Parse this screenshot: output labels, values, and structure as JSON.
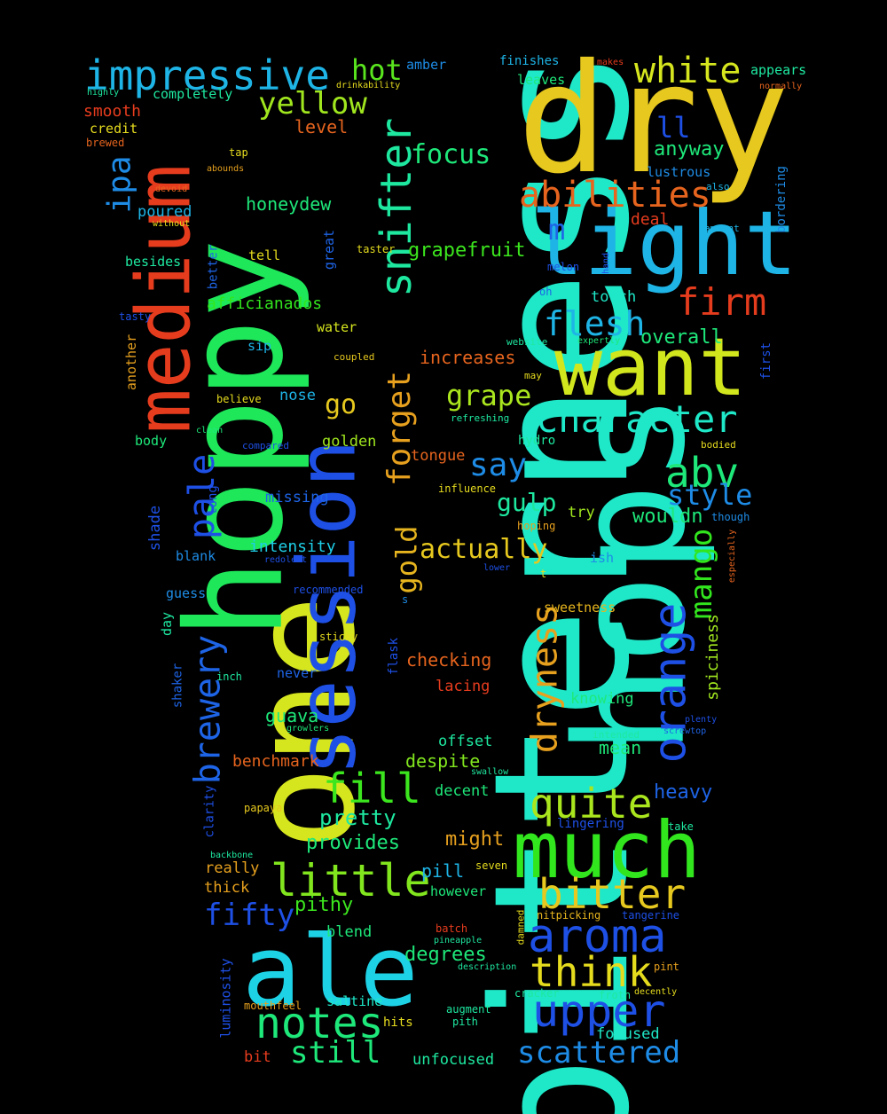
{
  "words": [
    {
      "text": "bitterness",
      "color": "#1ee8c8"
    },
    {
      "text": "hops",
      "color": "#1ee8c8"
    },
    {
      "text": "one",
      "color": "#d6e61e"
    },
    {
      "text": "hoppy",
      "color": "#1ee85a"
    },
    {
      "text": "dry",
      "color": "#e6c81e"
    },
    {
      "text": "session",
      "color": "#1e50e6"
    },
    {
      "text": "ale",
      "color": "#1ed2e6"
    },
    {
      "text": "medium",
      "color": "#e63c1e"
    },
    {
      "text": "light",
      "color": "#1eb4e6"
    },
    {
      "text": "want",
      "color": "#d2e61e"
    },
    {
      "text": "much",
      "color": "#32e61e"
    },
    {
      "text": "impressive",
      "color": "#1eb4e6"
    },
    {
      "text": "orange",
      "color": "#1e50e6"
    },
    {
      "text": "snifter",
      "color": "#1ee8a0"
    },
    {
      "text": "aroma",
      "color": "#1e50e6"
    },
    {
      "text": "upper",
      "color": "#1e50e6"
    },
    {
      "text": "notes",
      "color": "#1ee87a"
    },
    {
      "text": "little",
      "color": "#82e61e"
    },
    {
      "text": "bitter",
      "color": "#e6c81e"
    },
    {
      "text": "think",
      "color": "#e6dc1e"
    },
    {
      "text": "quite",
      "color": "#aae61e"
    },
    {
      "text": "character",
      "color": "#1ee8c8"
    },
    {
      "text": "abilities",
      "color": "#e6641e"
    },
    {
      "text": "dryness",
      "color": "#e6a01e"
    },
    {
      "text": "fill",
      "color": "#3ce61e"
    },
    {
      "text": "brewery",
      "color": "#1e64e6"
    },
    {
      "text": "abv",
      "color": "#1ee87a"
    },
    {
      "text": "white",
      "color": "#d6e61e"
    },
    {
      "text": "scattered",
      "color": "#1e8ce6"
    },
    {
      "text": "forget",
      "color": "#e6a01e"
    },
    {
      "text": "pale",
      "color": "#1e50e6"
    },
    {
      "text": "fifty",
      "color": "#1e50e6"
    },
    {
      "text": "flesh",
      "color": "#1eb4e6"
    },
    {
      "text": "firm",
      "color": "#e63c1e"
    },
    {
      "text": "yellow",
      "color": "#a0e61e"
    },
    {
      "text": "still",
      "color": "#1ee87a"
    },
    {
      "text": "mango",
      "color": "#32e61e"
    },
    {
      "text": "say",
      "color": "#1e8ce6"
    },
    {
      "text": "grape",
      "color": "#aae61e"
    },
    {
      "text": "style",
      "color": "#1e8ce6"
    },
    {
      "text": "hot",
      "color": "#5ae61e"
    },
    {
      "text": "ipa",
      "color": "#1e8ce6"
    },
    {
      "text": "gold",
      "color": "#e6b41e"
    },
    {
      "text": "focus",
      "color": "#1ee87a"
    },
    {
      "text": "actually",
      "color": "#e6c81e"
    },
    {
      "text": "gulp",
      "color": "#1ee8a0"
    },
    {
      "text": "ll",
      "color": "#1e50e6"
    },
    {
      "text": "m",
      "color": "#1e64e6"
    },
    {
      "text": "go",
      "color": "#e6c81e"
    },
    {
      "text": "pretty",
      "color": "#1ee8a0"
    },
    {
      "text": "grapefruit",
      "color": "#3ce61e"
    },
    {
      "text": "overall",
      "color": "#1ee87a"
    },
    {
      "text": "anyway",
      "color": "#1ee87a"
    },
    {
      "text": "honeydew",
      "color": "#1ee87a"
    },
    {
      "text": "provides",
      "color": "#1ee87a"
    },
    {
      "text": "heavy",
      "color": "#1e64e6"
    },
    {
      "text": "wouldn",
      "color": "#1ee87a"
    },
    {
      "text": "pithy",
      "color": "#3ce61e"
    },
    {
      "text": "degrees",
      "color": "#1ee87a"
    },
    {
      "text": "despite",
      "color": "#82e61e"
    },
    {
      "text": "benchmark",
      "color": "#e6641e"
    },
    {
      "text": "intensity",
      "color": "#1ecee6"
    },
    {
      "text": "guava",
      "color": "#1ee87a"
    },
    {
      "text": "might",
      "color": "#e6a01e"
    },
    {
      "text": "mean",
      "color": "#1ee87a"
    },
    {
      "text": "increases",
      "color": "#e6641e"
    },
    {
      "text": "checking",
      "color": "#e6641e"
    },
    {
      "text": "poured",
      "color": "#1eb4e6"
    },
    {
      "text": "smooth",
      "color": "#e63c1e"
    },
    {
      "text": "level",
      "color": "#e6641e"
    },
    {
      "text": "deal",
      "color": "#e63c1e"
    },
    {
      "text": "spiciness",
      "color": "#a0e61e"
    },
    {
      "text": "touch",
      "color": "#1ee8c8"
    },
    {
      "text": "afficianados",
      "color": "#32e61e"
    },
    {
      "text": "golden",
      "color": "#a0e61e"
    },
    {
      "text": "tongue",
      "color": "#e6641e"
    },
    {
      "text": "missing",
      "color": "#1e64e6"
    },
    {
      "text": "lacing",
      "color": "#e63c1e"
    },
    {
      "text": "offset",
      "color": "#1ee8a0"
    },
    {
      "text": "knowing",
      "color": "#1ee87a"
    },
    {
      "text": "pill",
      "color": "#1eb4e6"
    },
    {
      "text": "sweetness",
      "color": "#e6b41e"
    },
    {
      "text": "unfocused",
      "color": "#1ee8a0"
    },
    {
      "text": "focused",
      "color": "#1ee8c8"
    },
    {
      "text": "saltine",
      "color": "#1ee8c8"
    },
    {
      "text": "however",
      "color": "#1ee87a"
    },
    {
      "text": "decent",
      "color": "#1ee87a"
    },
    {
      "text": "blend",
      "color": "#1ee87a"
    },
    {
      "text": "really",
      "color": "#e6a01e"
    },
    {
      "text": "thick",
      "color": "#e6a01e"
    },
    {
      "text": "try",
      "color": "#a0e61e"
    },
    {
      "text": "water",
      "color": "#d6e61e"
    },
    {
      "text": "nose",
      "color": "#1eb4e6"
    },
    {
      "text": "tell",
      "color": "#e6dc1e"
    },
    {
      "text": "body",
      "color": "#1ee87a"
    },
    {
      "text": "besides",
      "color": "#1ee8a0"
    },
    {
      "text": "completely",
      "color": "#1ee8a0"
    },
    {
      "text": "credit",
      "color": "#e6dc1e"
    },
    {
      "text": "leaves",
      "color": "#1ee87a"
    },
    {
      "text": "lustrous",
      "color": "#1e8ce6"
    },
    {
      "text": "appears",
      "color": "#1ee8a0"
    },
    {
      "text": "amber",
      "color": "#1e8ce6"
    },
    {
      "text": "finishes",
      "color": "#1eb4e6"
    },
    {
      "text": "blank",
      "color": "#1e8ce6"
    },
    {
      "text": "guess",
      "color": "#1e8ce6"
    },
    {
      "text": "ish",
      "color": "#1e8ce6"
    },
    {
      "text": "sip",
      "color": "#1eb4e6"
    },
    {
      "text": "never",
      "color": "#1e64e6"
    },
    {
      "text": "bit",
      "color": "#e63c1e"
    },
    {
      "text": "hits",
      "color": "#e6dc1e"
    },
    {
      "text": "hydro",
      "color": "#1ee8a0"
    },
    {
      "text": "tap",
      "color": "#e6dc1e"
    },
    {
      "text": "believe",
      "color": "#e6dc1e"
    },
    {
      "text": "sticky",
      "color": "#e6dc1e"
    },
    {
      "text": "inch",
      "color": "#1ee8a0"
    },
    {
      "text": "pint",
      "color": "#e6a01e"
    },
    {
      "text": "cracker",
      "color": "#1ee8a0"
    },
    {
      "text": "augment",
      "color": "#1ee8a0"
    },
    {
      "text": "pith",
      "color": "#1ee8a0"
    },
    {
      "text": "froth",
      "color": "#1ee8a0"
    },
    {
      "text": "batch",
      "color": "#e63c1e"
    },
    {
      "text": "take",
      "color": "#1ee8a0"
    },
    {
      "text": "seven",
      "color": "#e6dc1e"
    },
    {
      "text": "lingering",
      "color": "#1e50e6"
    },
    {
      "text": "nitpicking",
      "color": "#e6b41e"
    },
    {
      "text": "tangerine",
      "color": "#1e50e6"
    },
    {
      "text": "mouthfeel",
      "color": "#e6a01e"
    },
    {
      "text": "papaya",
      "color": "#e6c81e"
    },
    {
      "text": "oh",
      "color": "#1e64e6"
    },
    {
      "text": "melon",
      "color": "#1e50e6"
    },
    {
      "text": "amount",
      "color": "#1eb4e6"
    },
    {
      "text": "also",
      "color": "#1eb4e6"
    },
    {
      "text": "coupled",
      "color": "#e6c81e"
    },
    {
      "text": "may",
      "color": "#e6dc1e"
    },
    {
      "text": "taster",
      "color": "#e6dc1e"
    },
    {
      "text": "t",
      "color": "#e6dc1e"
    },
    {
      "text": "s",
      "color": "#1e8ce6"
    },
    {
      "text": "tasty",
      "color": "#1e50e6"
    },
    {
      "text": "brewed",
      "color": "#e6641e"
    },
    {
      "text": "highly",
      "color": "#1ee8a0"
    },
    {
      "text": "devoid",
      "color": "#e6641e"
    },
    {
      "text": "abounds",
      "color": "#e6a01e"
    },
    {
      "text": "without",
      "color": "#e6dc1e"
    },
    {
      "text": "drinkability",
      "color": "#e6dc1e"
    },
    {
      "text": "makes",
      "color": "#e63c1e"
    },
    {
      "text": "normally",
      "color": "#e6641e"
    },
    {
      "text": "website",
      "color": "#1ee8a0"
    },
    {
      "text": "expertly",
      "color": "#1ee87a"
    },
    {
      "text": "refreshing",
      "color": "#1ee8a0"
    },
    {
      "text": "compared",
      "color": "#1e50e6"
    },
    {
      "text": "clean",
      "color": "#1ee87a"
    },
    {
      "text": "bodied",
      "color": "#e6dc1e"
    },
    {
      "text": "though",
      "color": "#1e8ce6"
    },
    {
      "text": "influence",
      "color": "#e6dc1e"
    },
    {
      "text": "hoping",
      "color": "#e6a01e"
    },
    {
      "text": "lower",
      "color": "#1e50e6"
    },
    {
      "text": "recommended",
      "color": "#1e50e6"
    },
    {
      "text": "redolent",
      "color": "#1e50e6"
    },
    {
      "text": "plenty",
      "color": "#1e50e6"
    },
    {
      "text": "screwtop",
      "color": "#1e64e6"
    },
    {
      "text": "intended",
      "color": "#1ee8a0"
    },
    {
      "text": "swallow",
      "color": "#1ee8a0"
    },
    {
      "text": "growlers",
      "color": "#1ee87a"
    },
    {
      "text": "backbone",
      "color": "#1ee8a0"
    },
    {
      "text": "pineapple",
      "color": "#1ee8a0"
    },
    {
      "text": "description",
      "color": "#1ee8a0"
    },
    {
      "text": "decently",
      "color": "#e6dc1e"
    },
    {
      "text": "bordering",
      "color": "#1e8ce6"
    },
    {
      "text": "first",
      "color": "#1e50e6"
    },
    {
      "text": "especially",
      "color": "#e6641e"
    },
    {
      "text": "another",
      "color": "#e6a01e"
    },
    {
      "text": "better",
      "color": "#1e64e6"
    },
    {
      "text": "great",
      "color": "#1e64e6"
    },
    {
      "text": "hand",
      "color": "#1e50e6"
    },
    {
      "text": "shade",
      "color": "#1e50e6"
    },
    {
      "text": "long",
      "color": "#1e50e6"
    },
    {
      "text": "day",
      "color": "#1ee8a0"
    },
    {
      "text": "shaker",
      "color": "#1e64e6"
    },
    {
      "text": "clarity",
      "color": "#1e50e6"
    },
    {
      "text": "luminosity",
      "color": "#1e50e6"
    },
    {
      "text": "flask",
      "color": "#1e50e6"
    },
    {
      "text": "damned",
      "color": "#e6dc1e"
    }
  ]
}
